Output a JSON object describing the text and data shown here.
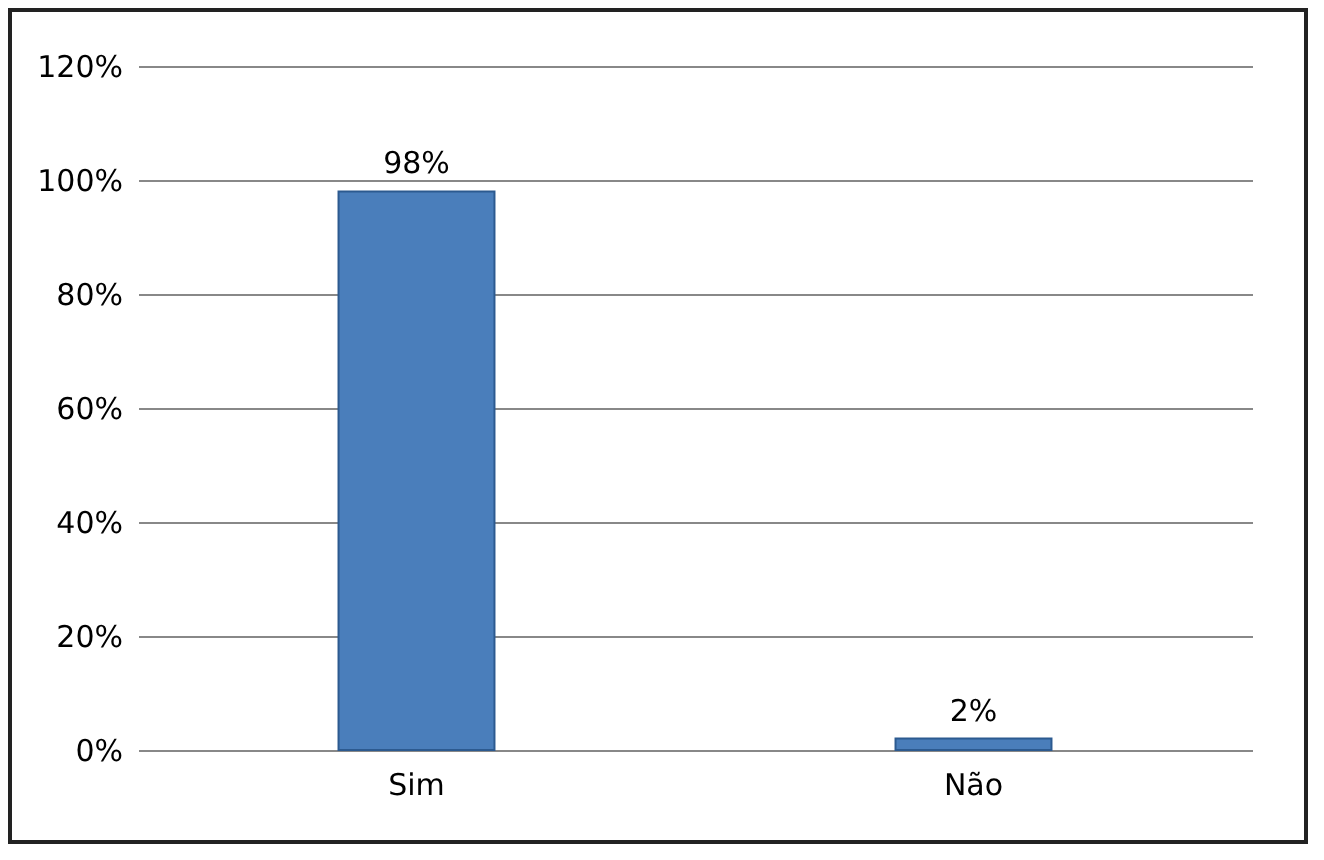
{
  "chart_data": {
    "type": "bar",
    "categories": [
      "Sim",
      "Não"
    ],
    "values": [
      98,
      2
    ],
    "color": "#4a7ebb",
    "value_labels": [
      "98%",
      "2%"
    ],
    "ylim": [
      0,
      120
    ],
    "yticks": [
      {
        "value": 0,
        "label": "0%"
      },
      {
        "value": 20,
        "label": "20%"
      },
      {
        "value": 40,
        "label": "40%"
      },
      {
        "value": 60,
        "label": "60%"
      },
      {
        "value": 80,
        "label": "80%"
      },
      {
        "value": 100,
        "label": "100%"
      },
      {
        "value": 120,
        "label": "120%"
      }
    ],
    "grid": "y"
  }
}
